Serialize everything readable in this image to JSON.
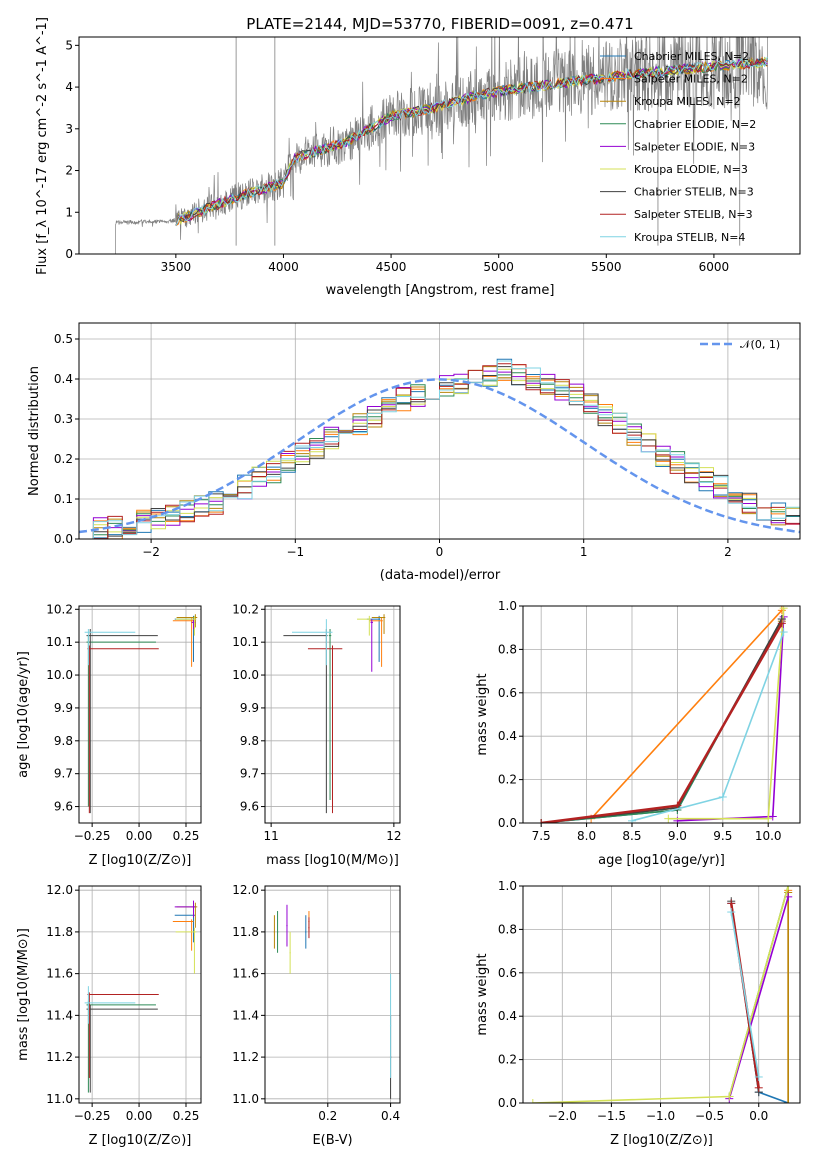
{
  "chart_data": [
    {
      "type": "line",
      "id": "spectrum",
      "title": "PLATE=2144, MJD=53770, FIBERID=0091, z=0.471",
      "xlabel": "wavelength [Angstrom, rest frame]",
      "ylabel": "Flux [f_λ 10^-17 erg cm^-2 s^-1 A^-1]",
      "xlim": [
        3050,
        6400
      ],
      "ylim": [
        0,
        5.2
      ],
      "xticks": [
        "3500",
        "4000",
        "4500",
        "5000",
        "5500",
        "6000"
      ],
      "yticks": [
        "0",
        "1",
        "2",
        "3",
        "4",
        "5"
      ],
      "grid": false,
      "legend_position": "right",
      "data_color": "#808080",
      "data_range": [
        3220,
        6250
      ],
      "continuum_x": [
        3220,
        3500,
        3800,
        4000,
        4050,
        4300,
        4500,
        4700,
        4900,
        5000,
        5300,
        5600,
        6000,
        6250
      ],
      "continuum_y": [
        0.75,
        0.8,
        1.4,
        1.7,
        2.3,
        2.7,
        3.3,
        3.5,
        3.8,
        3.9,
        4.1,
        4.3,
        4.5,
        4.6
      ],
      "series": [
        {
          "name": "Chabrier MILES, N_SSP=2",
          "color": "#1f77b4"
        },
        {
          "name": "Salpeter MILES, N_SSP=2",
          "color": "#ff7f0e"
        },
        {
          "name": "Kroupa MILES, N_SSP=2",
          "color": "#b8860b"
        },
        {
          "name": "Chabrier ELODIE, N_SSP=2",
          "color": "#2e8b57"
        },
        {
          "name": "Salpeter ELODIE, N_SSP=3",
          "color": "#9400d3"
        },
        {
          "name": "Kroupa ELODIE, N_SSP=3",
          "color": "#d4e157"
        },
        {
          "name": "Chabrier STELIB, N_SSP=3",
          "color": "#404040"
        },
        {
          "name": "Salpeter STELIB, N_SSP=3",
          "color": "#b22222"
        },
        {
          "name": "Kroupa STELIB, N_SSP=4",
          "color": "#7fd3e3"
        }
      ]
    },
    {
      "type": "histogram",
      "id": "residuals",
      "xlabel": "(data-model)/error",
      "ylabel": "Normed distribution",
      "xlim": [
        -2.5,
        2.5
      ],
      "ylim": [
        0,
        0.54
      ],
      "xticks": [
        "−2",
        "−1",
        "0",
        "1",
        "2"
      ],
      "yticks": [
        "0.0",
        "0.1",
        "0.2",
        "0.3",
        "0.4",
        "0.5"
      ],
      "grid": true,
      "legend_position": "top-right",
      "reference": {
        "name": "𝒩(0, 1)",
        "color": "#6495ed"
      },
      "bin_start": -2.5,
      "bin_width": 0.1,
      "base_values": [
        0.02,
        0.025,
        0.03,
        0.04,
        0.045,
        0.05,
        0.06,
        0.07,
        0.08,
        0.09,
        0.11,
        0.13,
        0.15,
        0.17,
        0.19,
        0.21,
        0.23,
        0.25,
        0.27,
        0.29,
        0.31,
        0.33,
        0.35,
        0.36,
        0.37,
        0.38,
        0.39,
        0.4,
        0.41,
        0.42,
        0.41,
        0.4,
        0.39,
        0.37,
        0.36,
        0.34,
        0.31,
        0.29,
        0.26,
        0.24,
        0.21,
        0.19,
        0.17,
        0.15,
        0.13,
        0.11,
        0.09,
        0.07,
        0.06,
        0.05
      ]
    },
    {
      "type": "scatter",
      "id": "age-vs-Z",
      "xlabel": "Z [log10(Z/Z⊙)]",
      "ylabel": "age  [log10(age/yr)]",
      "xlim": [
        -0.32,
        0.33
      ],
      "ylim": [
        9.55,
        10.21
      ],
      "xticks": [
        "−0.25",
        "0.00",
        "0.25"
      ],
      "ytick_values": [
        9.6,
        9.7,
        9.8,
        9.9,
        10.0,
        10.1,
        10.2
      ],
      "yticks": [
        "9.6",
        "9.7",
        "9.8",
        "9.9",
        "10.0",
        "10.1",
        "10.2"
      ],
      "xtick_values": [
        -0.25,
        0,
        0.25
      ],
      "grid": true
    },
    {
      "type": "scatter",
      "id": "age-vs-mass",
      "xlabel": "mass [log10(M/M⊙)]",
      "xlim": [
        10.95,
        12.05
      ],
      "ylim": [
        9.55,
        10.21
      ],
      "xticks": [
        "11",
        "12"
      ],
      "xtick_values": [
        11,
        12
      ],
      "yticks": [
        "9.6",
        "9.7",
        "9.8",
        "9.9",
        "10.0",
        "10.1",
        "10.2"
      ],
      "ytick_values": [
        9.6,
        9.7,
        9.8,
        9.9,
        10.0,
        10.1,
        10.2
      ],
      "grid": true
    },
    {
      "type": "line",
      "id": "weight-vs-age",
      "xlabel": "age  [log10(age/yr)]",
      "ylabel": "mass weight",
      "xlim": [
        7.3,
        10.35
      ],
      "ylim": [
        0,
        1.0
      ],
      "xticks": [
        "7.5",
        "8.0",
        "8.5",
        "9.0",
        "9.5",
        "10.0"
      ],
      "xtick_values": [
        7.5,
        8,
        8.5,
        9,
        9.5,
        10
      ],
      "yticks": [
        "0.0",
        "0.2",
        "0.4",
        "0.6",
        "0.8",
        "1.0"
      ],
      "ytick_values": [
        0,
        0.2,
        0.4,
        0.6,
        0.8,
        1.0
      ],
      "grid": true
    },
    {
      "type": "scatter",
      "id": "mass-vs-Z",
      "xlabel": "Z [log10(Z/Z⊙)]",
      "ylabel": "mass [log10(M/M⊙)]",
      "xlim": [
        -0.32,
        0.33
      ],
      "ylim": [
        10.98,
        12.02
      ],
      "xticks": [
        "−0.25",
        "0.00",
        "0.25"
      ],
      "xtick_values": [
        -0.25,
        0,
        0.25
      ],
      "yticks": [
        "11.0",
        "11.2",
        "11.4",
        "11.6",
        "11.8",
        "12.0"
      ],
      "ytick_values": [
        11,
        11.2,
        11.4,
        11.6,
        11.8,
        12
      ],
      "grid": true
    },
    {
      "type": "scatter",
      "id": "mass-vs-EBV",
      "xlabel": "E(B-V)",
      "xlim": [
        0.0,
        0.43
      ],
      "ylim": [
        10.98,
        12.02
      ],
      "xticks": [
        "0.2",
        "0.4"
      ],
      "xtick_values": [
        0.2,
        0.4
      ],
      "yticks": [
        "11.0",
        "11.2",
        "11.4",
        "11.6",
        "11.8",
        "12.0"
      ],
      "ytick_values": [
        11,
        11.2,
        11.4,
        11.6,
        11.8,
        12
      ],
      "grid": true
    },
    {
      "type": "line",
      "id": "weight-vs-Z",
      "xlabel": "Z [log10(Z/Z⊙)]",
      "ylabel": "mass weight",
      "xlim": [
        -2.4,
        0.42
      ],
      "ylim": [
        0,
        1.0
      ],
      "xticks": [
        "−2.0",
        "−1.5",
        "−1.0",
        "−0.5",
        "0.0"
      ],
      "xtick_values": [
        -2,
        -1.5,
        -1,
        -0.5,
        0
      ],
      "yticks": [
        "0.0",
        "0.2",
        "0.4",
        "0.6",
        "0.8",
        "1.0"
      ],
      "ytick_values": [
        0,
        0.2,
        0.4,
        0.6,
        0.8,
        1.0
      ],
      "grid": true
    }
  ]
}
